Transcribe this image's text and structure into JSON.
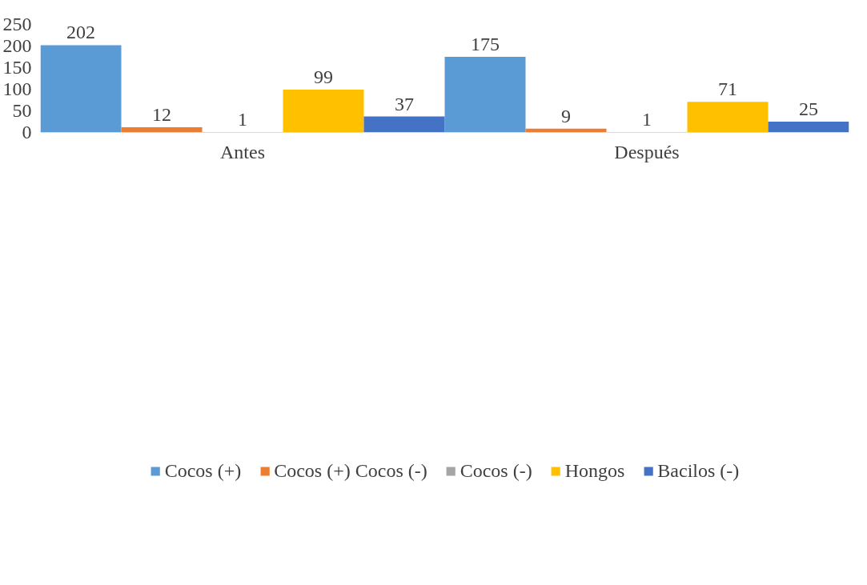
{
  "chart_data": {
    "type": "bar",
    "categories": [
      "Antes",
      "Después"
    ],
    "series": [
      {
        "name": "Cocos (+)",
        "color": "#5b9bd5",
        "values": [
          202,
          175
        ]
      },
      {
        "name": "Cocos (+) Cocos (-)",
        "color": "#ed7d31",
        "values": [
          12,
          9
        ]
      },
      {
        "name": "Cocos (-)",
        "color": "#a5a5a5",
        "values": [
          1,
          1
        ]
      },
      {
        "name": "Hongos",
        "color": "#ffc000",
        "values": [
          99,
          71
        ]
      },
      {
        "name": "Bacilos (-)",
        "color": "#4472c4",
        "values": [
          37,
          25
        ]
      }
    ],
    "ylim": [
      0,
      250
    ],
    "yticks": [
      0,
      50,
      100,
      150,
      200,
      250
    ],
    "grid": false,
    "legend": "bottom",
    "data_labels": true
  }
}
